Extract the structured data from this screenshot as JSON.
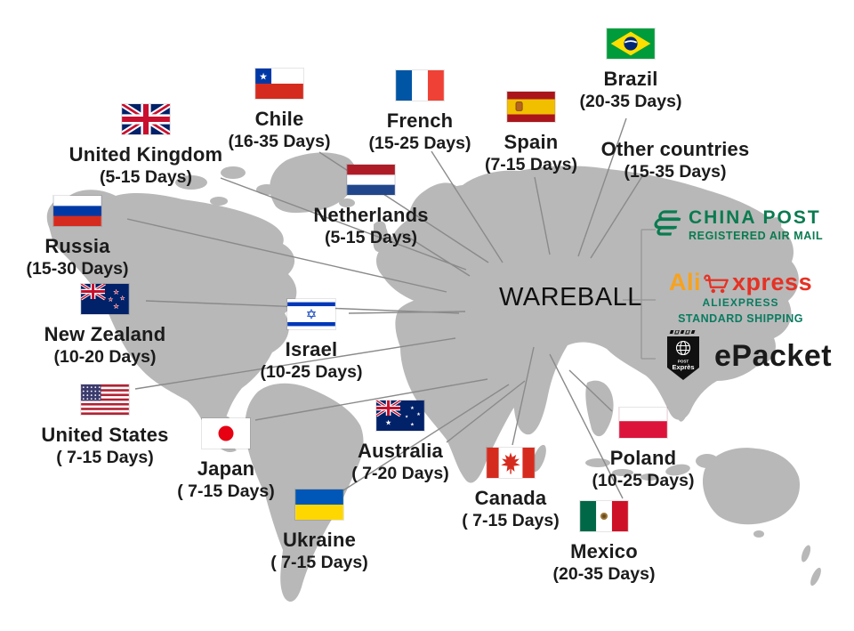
{
  "title": {
    "brand": "WAREBALL"
  },
  "colors": {
    "map_gray": "#b8b8b8",
    "line_gray": "#8a8a8a",
    "label_text": "#1b1b1b",
    "china_post_green": "#0a7b50",
    "aliexpress_orange": "#f7a21d",
    "aliexpress_red": "#e43225",
    "standard_shipping_green": "#0a7b60",
    "epacket_black": "#1a1a1a"
  },
  "countries": [
    {
      "id": "uk",
      "name": "United Kingdom",
      "days": "(5-15 Days)"
    },
    {
      "id": "chile",
      "name": "Chile",
      "days": "(16-35 Days)"
    },
    {
      "id": "french",
      "name": "French",
      "days": "(15-25 Days)"
    },
    {
      "id": "netherlands",
      "name": "Netherlands",
      "days": "(5-15 Days)"
    },
    {
      "id": "spain",
      "name": "Spain",
      "days": "(7-15 Days)"
    },
    {
      "id": "brazil",
      "name": "Brazil",
      "days": "(20-35 Days)"
    },
    {
      "id": "other",
      "name": "Other countries",
      "days": "(15-35 Days)"
    },
    {
      "id": "russia",
      "name": "Russia",
      "days": "(15-30 Days)"
    },
    {
      "id": "new_zealand",
      "name": "New Zealand",
      "days": "(10-20 Days)"
    },
    {
      "id": "israel",
      "name": "Israel",
      "days": "(10-25 Days)"
    },
    {
      "id": "us",
      "name": "United States",
      "days": "( 7-15 Days)"
    },
    {
      "id": "japan",
      "name": "Japan",
      "days": "( 7-15 Days)"
    },
    {
      "id": "ukraine",
      "name": "Ukraine",
      "days": "( 7-15 Days)"
    },
    {
      "id": "australia",
      "name": "Australia",
      "days": "( 7-20 Days)"
    },
    {
      "id": "canada",
      "name": "Canada",
      "days": "( 7-15 Days)"
    },
    {
      "id": "poland",
      "name": "Poland",
      "days": "(10-25 Days)"
    },
    {
      "id": "mexico",
      "name": "Mexico",
      "days": "(20-35 Days)"
    }
  ],
  "logos": {
    "china_post": {
      "line1": "CHINA POST",
      "line2": "REGISTERED AIR MAIL"
    },
    "aliexpress": {
      "word1": "Ali",
      "word2": "xpress",
      "line1": "ALIEXPRESS",
      "line2": "STANDARD SHIPPING"
    },
    "epacket": {
      "label": "ePacket",
      "badge_top": "POST",
      "badge_text": "Exprès"
    }
  }
}
